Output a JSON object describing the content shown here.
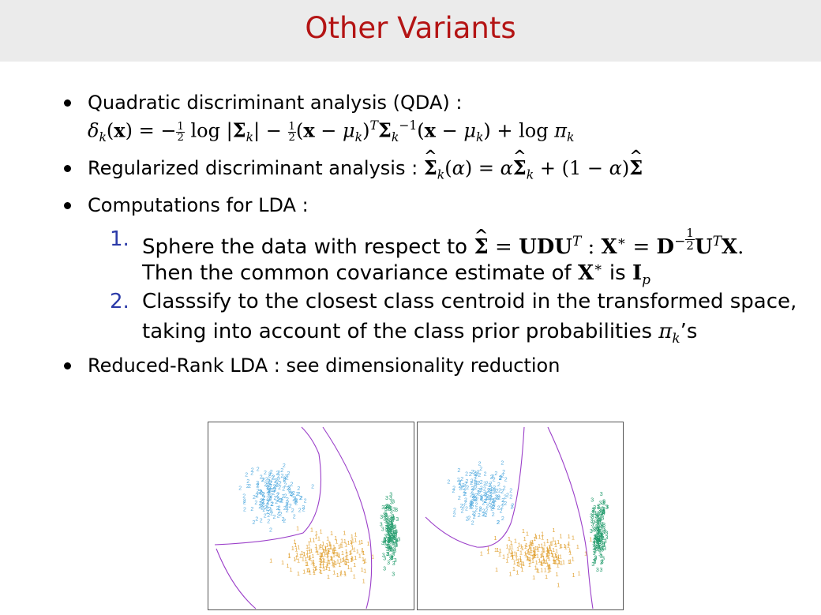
{
  "slide": {
    "title": "Other Variants"
  },
  "bullets": [
    {
      "text": "Quadratic discriminant analysis (QDA) :"
    },
    {
      "text": "Regularized discriminant analysis :"
    },
    {
      "text": "Computations for LDA :"
    },
    {
      "text": "Reduced-Rank LDA : see dimensionality reduction"
    }
  ],
  "enum_items": [
    {
      "number": "1.",
      "line1": "Sphere the data with respect to",
      "line2": "Then the common covariance estimate of"
    },
    {
      "number": "2.",
      "line1": "Classsify to the closest class centroid in the transformed space,",
      "line2": "taking into account of the class prior probabilities"
    }
  ],
  "colors": {
    "title": "#b41414",
    "title_bar": "#ebebeb",
    "enum_number": "#2b3aa8",
    "class1": "#e0a030",
    "class2": "#5aaee0",
    "class3": "#1f9a6a",
    "boundary": "#9b3fc9"
  },
  "figure": {
    "panels": [
      "left",
      "right"
    ],
    "class_labels": [
      "1",
      "2",
      "3"
    ]
  }
}
